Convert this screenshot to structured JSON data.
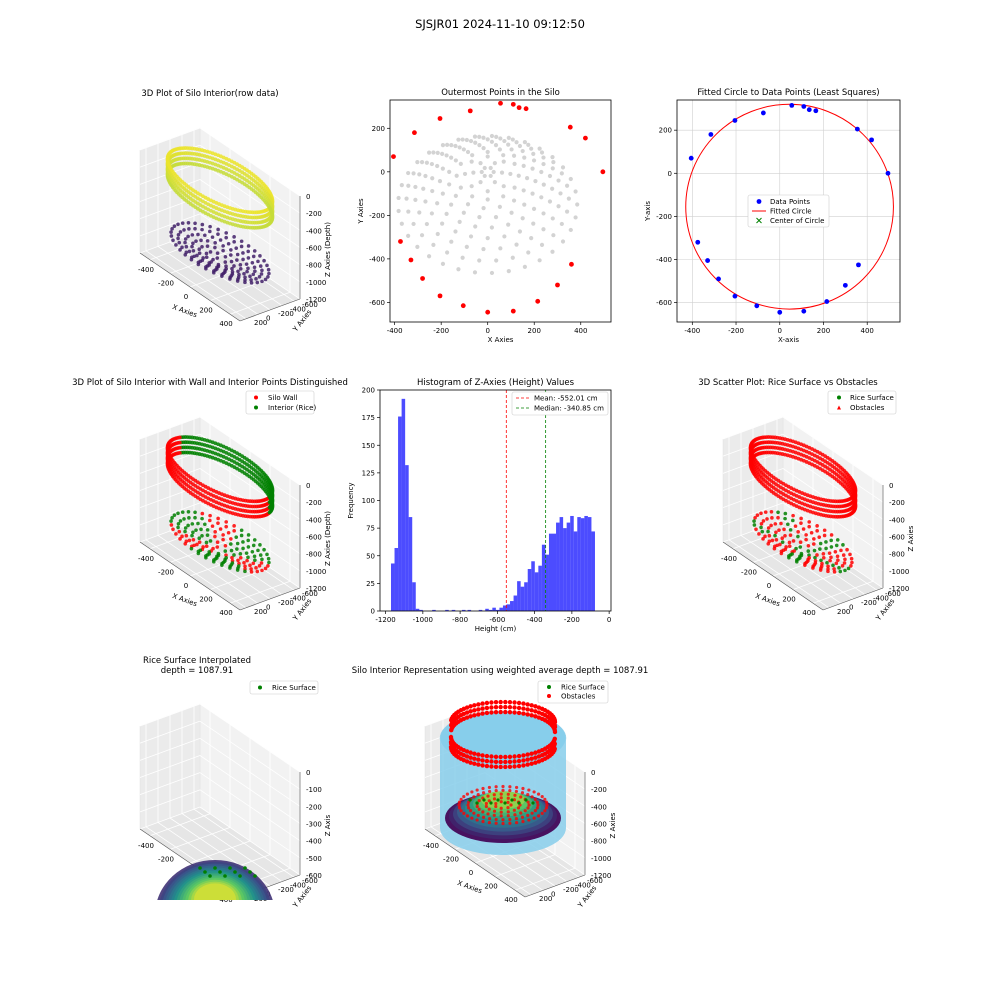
{
  "figure": {
    "suptitle": "SJSJR01 2024-11-10 09:12:50"
  },
  "chart_data": [
    {
      "id": "p1",
      "type": "scatter3d",
      "title": "3D Plot of Silo Interior(row data)",
      "xlabel": "X Axies",
      "ylabel": "Y Axies",
      "zlabel": "Z Axies (Depth)",
      "x_ticks": [
        "-400",
        "-200",
        "0",
        "200",
        "400"
      ],
      "y_ticks": [
        "200",
        "0",
        "-200",
        "-400",
        "-600"
      ],
      "z_ticks": [
        "0",
        "-200",
        "-400",
        "-600",
        "-800",
        "-1000",
        "-1200"
      ],
      "colormap": "viridis"
    },
    {
      "id": "p2",
      "type": "scatter",
      "title": "Outermost Points in the Silo",
      "xlabel": "X Axies",
      "ylabel": "Y Axies",
      "xlim": [
        -420,
        530
      ],
      "ylim": [
        -690,
        330
      ],
      "x_ticks": [
        -400,
        -200,
        0,
        200,
        400
      ],
      "y_ticks": [
        200,
        0,
        -200,
        -400,
        -600
      ],
      "series": [
        {
          "color": "#d3d3d3",
          "kind": "interior-grid"
        },
        {
          "color": "#ff0000",
          "points": [
            [
              -405,
              70
            ],
            [
              -315,
              180
            ],
            [
              -205,
              245
            ],
            [
              -75,
              280
            ],
            [
              55,
              315
            ],
            [
              110,
              310
            ],
            [
              135,
              295
            ],
            [
              165,
              290
            ],
            [
              355,
              205
            ],
            [
              420,
              155
            ],
            [
              495,
              0
            ],
            [
              -375,
              -320
            ],
            [
              -330,
              -405
            ],
            [
              -280,
              -490
            ],
            [
              -205,
              -570
            ],
            [
              -105,
              -615
            ],
            [
              0,
              -645
            ],
            [
              110,
              -640
            ],
            [
              215,
              -595
            ],
            [
              300,
              -520
            ],
            [
              360,
              -425
            ]
          ]
        }
      ]
    },
    {
      "id": "p3",
      "type": "scatter",
      "title": "Fitted Circle to Data Points (Least Squares)",
      "xlabel": "X-axis",
      "ylabel": "Y-axis",
      "xlim": [
        -470,
        550
      ],
      "ylim": [
        -690,
        340
      ],
      "x_ticks": [
        -400,
        -200,
        0,
        200,
        400
      ],
      "y_ticks": [
        200,
        0,
        -200,
        -400,
        -600
      ],
      "legend": {
        "position": "center",
        "entries": [
          "Data Points",
          "Fitted Circle",
          "Center of Circle"
        ]
      },
      "circle": {
        "cx": 45,
        "cy": -155,
        "r": 475,
        "color": "#ff0000"
      },
      "center_marker_color": "#008000",
      "series": [
        {
          "name": "Data Points",
          "color": "#0000ff",
          "points": [
            [
              -405,
              70
            ],
            [
              -315,
              180
            ],
            [
              -205,
              245
            ],
            [
              -75,
              280
            ],
            [
              55,
              315
            ],
            [
              110,
              310
            ],
            [
              135,
              295
            ],
            [
              165,
              290
            ],
            [
              355,
              205
            ],
            [
              420,
              155
            ],
            [
              495,
              0
            ],
            [
              -375,
              -320
            ],
            [
              -330,
              -405
            ],
            [
              -280,
              -490
            ],
            [
              -205,
              -570
            ],
            [
              -105,
              -615
            ],
            [
              0,
              -645
            ],
            [
              110,
              -640
            ],
            [
              215,
              -595
            ],
            [
              300,
              -520
            ],
            [
              360,
              -425
            ]
          ]
        }
      ]
    },
    {
      "id": "p4",
      "type": "scatter3d",
      "title": "3D Plot of Silo Interior with Wall and Interior Points Distinguished",
      "xlabel": "X Axies",
      "ylabel": "Y Axies",
      "zlabel": "Z Axies (Depth)",
      "x_ticks": [
        "-400",
        "-200",
        "0",
        "200",
        "400"
      ],
      "y_ticks": [
        "200",
        "0",
        "-200",
        "-400",
        "-600"
      ],
      "z_ticks": [
        "0",
        "-200",
        "-400",
        "-600",
        "-800",
        "-1000",
        "-1200"
      ],
      "legend": {
        "position": "top-right",
        "entries": [
          {
            "name": "Silo Wall",
            "color": "#ff0000"
          },
          {
            "name": "Interior (Rice)",
            "color": "#008000"
          }
        ]
      }
    },
    {
      "id": "p5",
      "type": "bar",
      "title": "Histogram of Z-Axies (Height) Values",
      "xlabel": "Height (cm)",
      "ylabel": "Frequency",
      "xlim": [
        -1230,
        10
      ],
      "ylim": [
        0,
        200
      ],
      "x_ticks": [
        -1200,
        -1000,
        -800,
        -600,
        -400,
        -200,
        0
      ],
      "y_ticks": [
        0,
        25,
        50,
        75,
        100,
        125,
        150,
        175,
        200
      ],
      "bar_color": "#0000ff",
      "bin_width": 19,
      "bins": [
        [
          -1171,
          43
        ],
        [
          -1152,
          57
        ],
        [
          -1133,
          176
        ],
        [
          -1114,
          192
        ],
        [
          -1095,
          132
        ],
        [
          -1076,
          85
        ],
        [
          -1057,
          26
        ],
        [
          -1038,
          2
        ],
        [
          -1019,
          1
        ],
        [
          -950,
          1
        ],
        [
          -880,
          1
        ],
        [
          -845,
          1
        ],
        [
          -790,
          1
        ],
        [
          -760,
          1
        ],
        [
          -700,
          1
        ],
        [
          -665,
          2
        ],
        [
          -646,
          1
        ],
        [
          -627,
          3
        ],
        [
          -608,
          1
        ],
        [
          -589,
          3
        ],
        [
          -570,
          5
        ],
        [
          -551,
          6
        ],
        [
          -532,
          9
        ],
        [
          -513,
          14
        ],
        [
          -494,
          27
        ],
        [
          -475,
          22
        ],
        [
          -456,
          26
        ],
        [
          -437,
          38
        ],
        [
          -418,
          45
        ],
        [
          -399,
          35
        ],
        [
          -380,
          41
        ],
        [
          -361,
          60
        ],
        [
          -342,
          51
        ],
        [
          -323,
          70
        ],
        [
          -304,
          70
        ],
        [
          -285,
          80
        ],
        [
          -266,
          85
        ],
        [
          -247,
          75
        ],
        [
          -228,
          80
        ],
        [
          -209,
          86
        ],
        [
          -190,
          72
        ],
        [
          -171,
          85
        ],
        [
          -152,
          84
        ],
        [
          -133,
          86
        ],
        [
          -114,
          85
        ],
        [
          -95,
          72
        ]
      ],
      "vlines": [
        {
          "value": -552.01,
          "color": "#ff0000",
          "label": "Mean: -552.01 cm"
        },
        {
          "value": -340.85,
          "color": "#008000",
          "label": "Median: -340.85 cm"
        }
      ],
      "legend": {
        "position": "top-right"
      }
    },
    {
      "id": "p6",
      "type": "scatter3d",
      "title": "3D Scatter Plot: Rice Surface vs Obstacles",
      "xlabel": "X Axies",
      "ylabel": "Y Axies",
      "zlabel": "Z Axies",
      "x_ticks": [
        "-400",
        "-200",
        "0",
        "200",
        "400"
      ],
      "y_ticks": [
        "200",
        "0",
        "-200",
        "-400",
        "-600"
      ],
      "z_ticks": [
        "0",
        "-200",
        "-400",
        "-600",
        "-800",
        "-1000",
        "-1200"
      ],
      "legend": {
        "position": "top-right",
        "entries": [
          {
            "name": "Rice Surface",
            "color": "#008000"
          },
          {
            "name": "Obstacles",
            "color": "#ff0000"
          }
        ]
      }
    },
    {
      "id": "p7",
      "type": "surface3d",
      "title": "Rice Surface Interpolated\ndepth = 1087.91",
      "xlabel": "X Axies",
      "ylabel": "Y Axies",
      "zlabel": "Z Axis",
      "x_ticks": [
        "-400",
        "-200",
        "0",
        "200",
        "400"
      ],
      "y_ticks": [
        "200",
        "0",
        "-200",
        "-400",
        "-600"
      ],
      "z_ticks": [
        "0",
        "-100",
        "-200",
        "-300",
        "-400",
        "-500",
        "-600"
      ],
      "legend": {
        "position": "top-right",
        "entries": [
          {
            "name": "Rice Surface",
            "color": "#008000"
          }
        ]
      }
    },
    {
      "id": "p8",
      "type": "scatter3d",
      "title": "Silo Interior Representation using weighted average depth = 1087.91",
      "xlabel": "X Axies",
      "ylabel": "Y Axies",
      "zlabel": "Z Axies",
      "x_ticks": [
        "-400",
        "-200",
        "0",
        "200",
        "400"
      ],
      "y_ticks": [
        "200",
        "0",
        "-200",
        "-400",
        "-600"
      ],
      "z_ticks": [
        "0",
        "-200",
        "-400",
        "-600",
        "-800",
        "-1000",
        "-1200"
      ],
      "legend": {
        "position": "top-center",
        "entries": [
          {
            "name": "Rice Surface",
            "color": "#008000"
          },
          {
            "name": "Obstacles",
            "color": "#ff0000"
          }
        ]
      },
      "cylinder_color": "#87ceeb"
    }
  ]
}
